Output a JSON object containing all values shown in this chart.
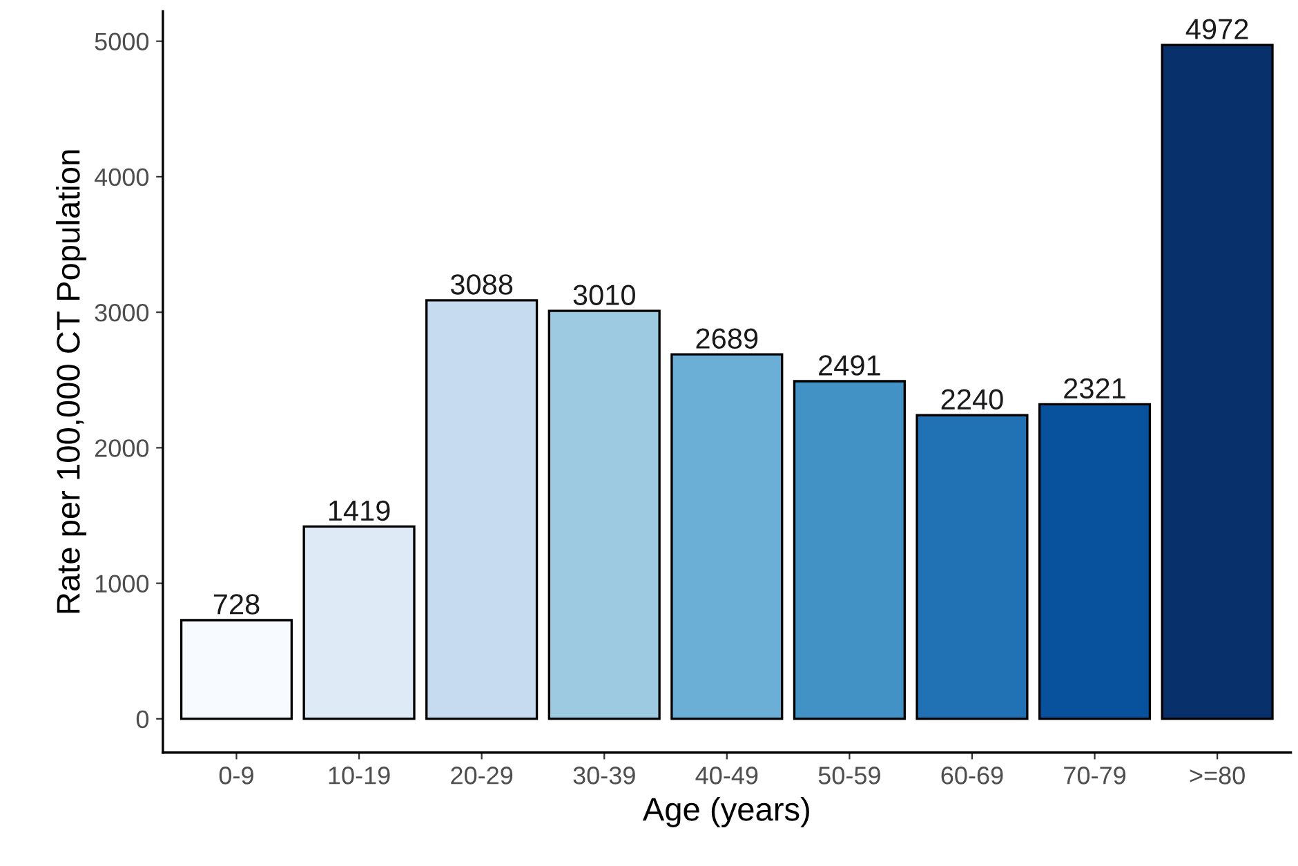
{
  "chart_data": {
    "type": "bar",
    "xlabel": "Age (years)",
    "ylabel": "Rate per 100,000 CT Population",
    "categories": [
      "0-9",
      "10-19",
      "20-29",
      "30-39",
      "40-49",
      "50-59",
      "60-69",
      "70-79",
      ">=80"
    ],
    "values": [
      728,
      1419,
      3088,
      3010,
      2689,
      2491,
      2240,
      2321,
      4972
    ],
    "colors": [
      "#f7fbff",
      "#deebf7",
      "#c6dbef",
      "#9ecae1",
      "#6baed6",
      "#4292c6",
      "#2171b5",
      "#08519c",
      "#08306b"
    ],
    "ylim": [
      -249,
      5221
    ],
    "yticks": [
      0,
      1000,
      2000,
      3000,
      4000,
      5000
    ],
    "data_labels": true,
    "grid": false,
    "legend": false
  }
}
